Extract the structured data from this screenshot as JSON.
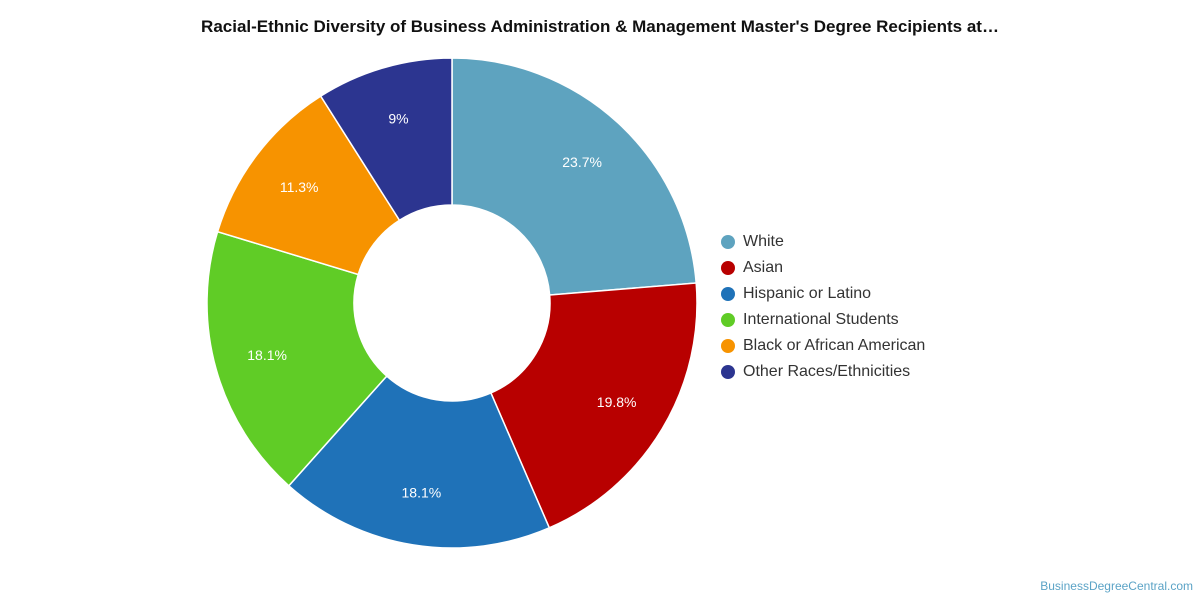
{
  "chart_data": {
    "type": "pie",
    "title": "Racial-Ethnic Diversity of Business Administration & Management Master's Degree Recipients at…",
    "categories": [
      "White",
      "Asian",
      "Hispanic or Latino",
      "International Students",
      "Black or African American",
      "Other Races/Ethnicities"
    ],
    "values": [
      23.7,
      19.8,
      18.1,
      18.1,
      11.3,
      9
    ],
    "value_labels": [
      "23.7%",
      "19.8%",
      "18.1%",
      "18.1%",
      "11.3%",
      "9%"
    ],
    "colors": [
      "#5ea3bf",
      "#b80000",
      "#1f72b8",
      "#60cc26",
      "#f79300",
      "#2c3590"
    ],
    "donut": true,
    "legend_position": "right"
  },
  "credit": "BusinessDegreeCentral.com"
}
